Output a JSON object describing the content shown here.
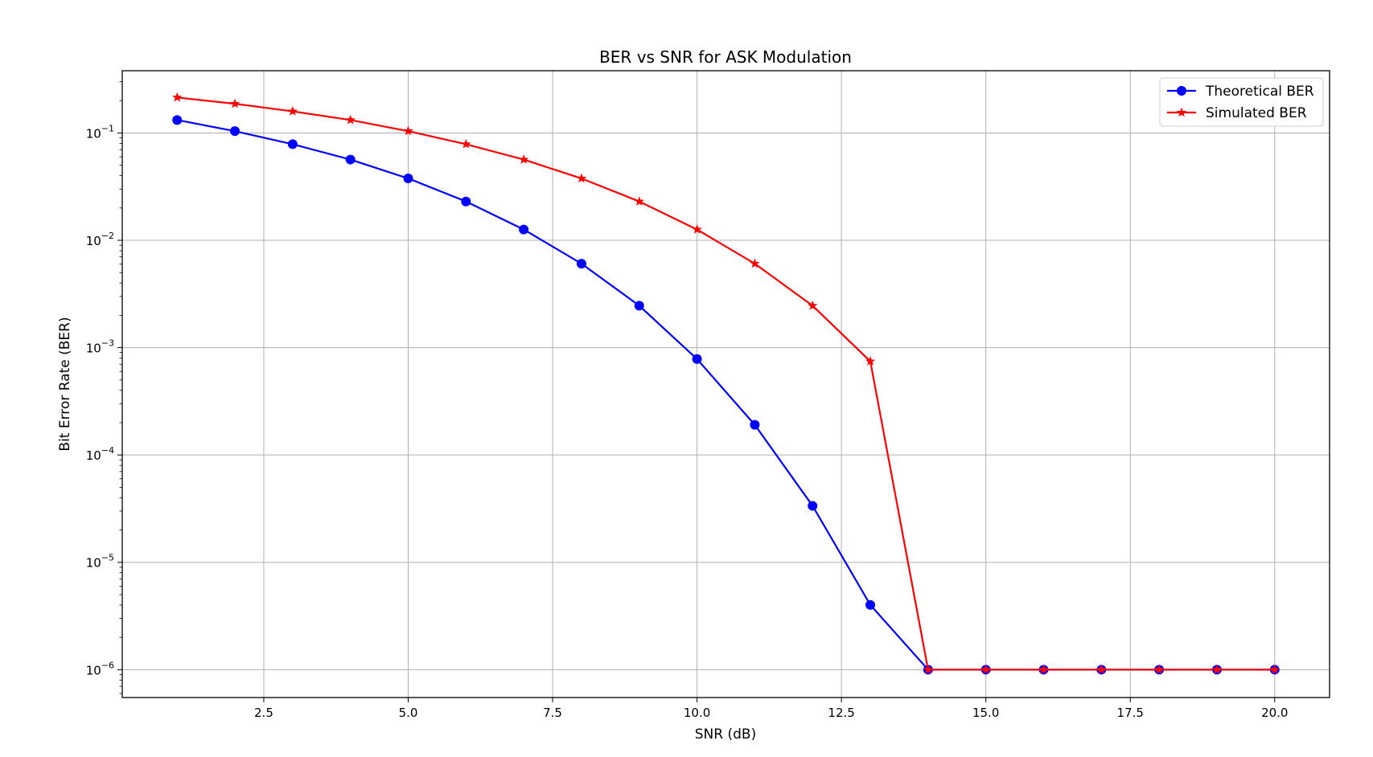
{
  "chart_data": {
    "type": "line",
    "title": "BER vs SNR for ASK Modulation",
    "xlabel": "SNR (dB)",
    "ylabel": "Bit Error Rate (BER)",
    "x": [
      1,
      2,
      3,
      4,
      5,
      6,
      7,
      8,
      9,
      10,
      11,
      12,
      13,
      14,
      15,
      16,
      17,
      18,
      19,
      20
    ],
    "xlim": [
      0.05,
      20.95
    ],
    "ylim": [
      5.5e-07,
      0.38
    ],
    "yscale": "log",
    "x_ticks": [
      2.5,
      5.0,
      7.5,
      10.0,
      12.5,
      15.0,
      17.5,
      20.0
    ],
    "x_tick_labels": [
      "2.5",
      "5.0",
      "7.5",
      "10.0",
      "12.5",
      "15.0",
      "17.5",
      "20.0"
    ],
    "y_tick_exponents": [
      -1,
      -2,
      -3,
      -4,
      -5,
      -6
    ],
    "y_tick_base": "10",
    "grid": true,
    "legend_position": "upper right",
    "series": [
      {
        "name": "Theoretical BER",
        "color": "#0000ff",
        "marker": "circle",
        "values": [
          0.132,
          0.104,
          0.0786,
          0.0565,
          0.0377,
          0.023,
          0.0126,
          0.00606,
          0.00246,
          0.000783,
          0.000191,
          3.36e-05,
          4.01e-06,
          1e-06,
          1e-06,
          1e-06,
          1e-06,
          1e-06,
          1e-06,
          1e-06
        ]
      },
      {
        "name": "Simulated BER",
        "color": "#ff0000",
        "marker": "star",
        "values": [
          0.214,
          0.187,
          0.159,
          0.132,
          0.104,
          0.0786,
          0.0565,
          0.0377,
          0.023,
          0.0126,
          0.00606,
          0.00246,
          0.000745,
          1e-06,
          1e-06,
          1e-06,
          1e-06,
          1e-06,
          1e-06,
          1e-06
        ]
      }
    ]
  }
}
